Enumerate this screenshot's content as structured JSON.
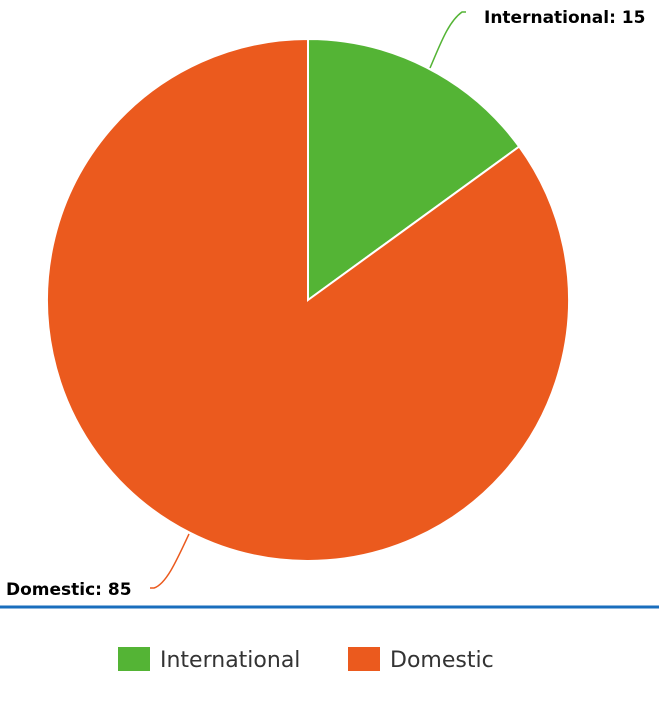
{
  "chart_data": {
    "type": "pie",
    "title": "",
    "series": [
      {
        "name": "International",
        "value": 15,
        "color": "#54b435",
        "label": "International: 15"
      },
      {
        "name": "Domestic",
        "value": 85,
        "color": "#eb5a1e",
        "label": "Domestic: 85"
      }
    ],
    "legend": {
      "position": "bottom-center",
      "items": [
        "International",
        "Domestic"
      ]
    },
    "separator_color": "#1a6ebd"
  }
}
